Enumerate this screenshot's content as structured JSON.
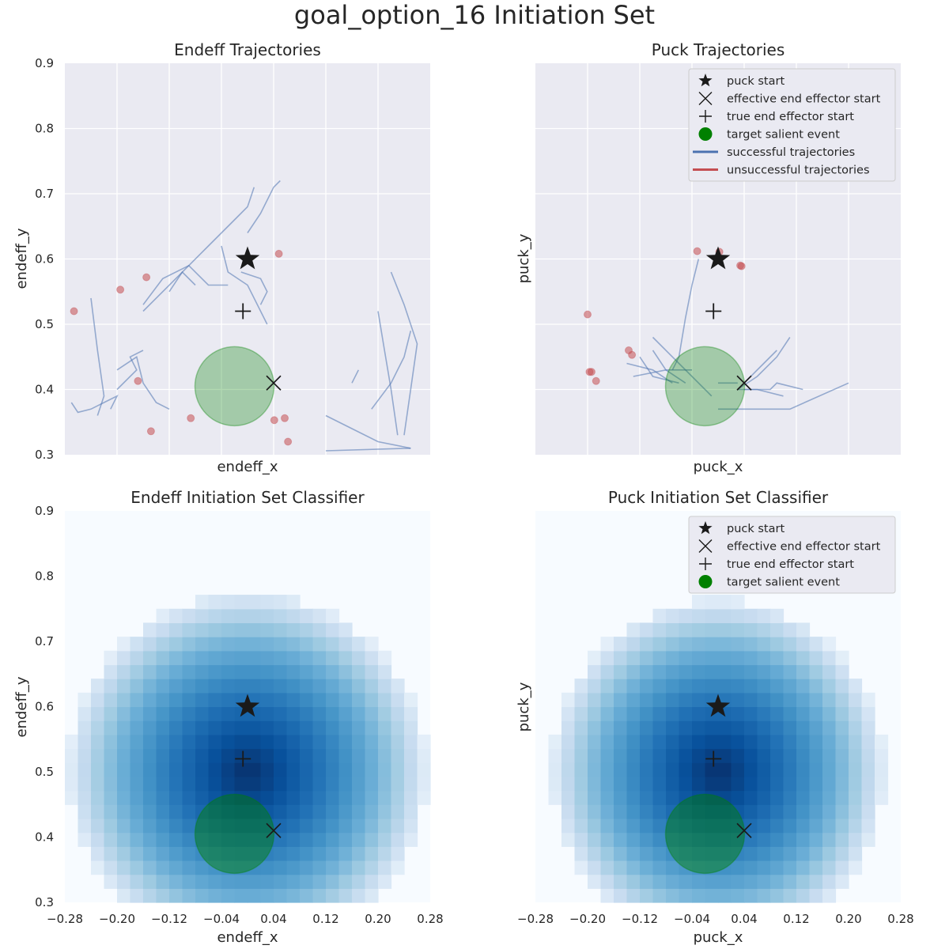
{
  "figure_title": "goal_option_16 Initiation Set",
  "colors": {
    "axes_bg": "#eaeaf2",
    "grid": "#ffffff",
    "success": "#4c72b0",
    "failure": "#c44e52",
    "target": "#008000",
    "marker": "#1a1a1a",
    "legend_bg": "#eaeaf2",
    "legend_border": "#cccccc"
  },
  "legend": {
    "puck_start": "puck start",
    "eff_start": "effective end effector start",
    "true_start": "true end effector start",
    "target": "target salient event",
    "success": "successful trajectories",
    "failure": "unsuccessful trajectories"
  },
  "markers": {
    "puck_start": [
      0.0,
      0.6
    ],
    "effective_end_effector_start": [
      0.04,
      0.41
    ],
    "true_end_effector_start": [
      -0.007,
      0.52
    ],
    "target_salient_event": [
      -0.02,
      0.405
    ]
  },
  "chart_data": [
    {
      "type": "line",
      "title": "Endeff Trajectories",
      "xlabel": "endeff_x",
      "ylabel": "endeff_y",
      "xlim": [
        -0.28,
        0.28
      ],
      "ylim": [
        0.3,
        0.9
      ],
      "yticks": [
        "0.3",
        "0.4",
        "0.5",
        "0.6",
        "0.7",
        "0.8",
        "0.9"
      ],
      "x_gridlines": [
        -0.2,
        -0.12,
        -0.04,
        0.04,
        0.12,
        0.2
      ],
      "grid": true,
      "legend": "none",
      "successful_trajectories": [
        [
          [
            -0.21,
            0.37
          ],
          [
            -0.2,
            0.39
          ],
          [
            -0.22,
            0.38
          ],
          [
            -0.24,
            0.37
          ],
          [
            -0.26,
            0.365
          ],
          [
            -0.27,
            0.38
          ]
        ],
        [
          [
            -0.24,
            0.54
          ],
          [
            -0.23,
            0.46
          ],
          [
            -0.22,
            0.39
          ],
          [
            -0.23,
            0.36
          ]
        ],
        [
          [
            -0.2,
            0.4
          ],
          [
            -0.17,
            0.43
          ],
          [
            -0.18,
            0.45
          ],
          [
            -0.16,
            0.46
          ]
        ],
        [
          [
            -0.2,
            0.43
          ],
          [
            -0.17,
            0.45
          ],
          [
            -0.16,
            0.41
          ],
          [
            -0.14,
            0.38
          ],
          [
            -0.12,
            0.37
          ]
        ],
        [
          [
            -0.16,
            0.53
          ],
          [
            -0.13,
            0.57
          ],
          [
            -0.09,
            0.59
          ],
          [
            -0.06,
            0.56
          ],
          [
            -0.03,
            0.56
          ]
        ],
        [
          [
            -0.12,
            0.55
          ],
          [
            -0.1,
            0.58
          ],
          [
            -0.08,
            0.56
          ]
        ],
        [
          [
            -0.16,
            0.52
          ],
          [
            -0.11,
            0.57
          ],
          [
            -0.06,
            0.62
          ],
          [
            -0.02,
            0.66
          ],
          [
            0.0,
            0.68
          ],
          [
            0.01,
            0.71
          ]
        ],
        [
          [
            -0.04,
            0.62
          ],
          [
            -0.03,
            0.58
          ],
          [
            0.0,
            0.56
          ],
          [
            0.03,
            0.5
          ]
        ],
        [
          [
            -0.01,
            0.58
          ],
          [
            0.02,
            0.57
          ],
          [
            0.03,
            0.55
          ],
          [
            0.02,
            0.53
          ]
        ],
        [
          [
            0.0,
            0.64
          ],
          [
            0.02,
            0.67
          ],
          [
            0.04,
            0.71
          ],
          [
            0.05,
            0.72
          ]
        ],
        [
          [
            0.12,
            0.36
          ],
          [
            0.16,
            0.34
          ],
          [
            0.2,
            0.32
          ],
          [
            0.25,
            0.31
          ]
        ],
        [
          [
            0.19,
            0.37
          ],
          [
            0.22,
            0.41
          ],
          [
            0.24,
            0.45
          ],
          [
            0.25,
            0.49
          ]
        ],
        [
          [
            0.16,
            0.41
          ],
          [
            0.17,
            0.43
          ]
        ],
        [
          [
            0.2,
            0.52
          ],
          [
            0.21,
            0.46
          ],
          [
            0.22,
            0.4
          ],
          [
            0.23,
            0.33
          ]
        ],
        [
          [
            0.22,
            0.58
          ],
          [
            0.24,
            0.53
          ],
          [
            0.26,
            0.47
          ],
          [
            0.25,
            0.4
          ],
          [
            0.24,
            0.33
          ]
        ],
        [
          [
            0.12,
            0.306
          ],
          [
            0.25,
            0.31
          ]
        ]
      ],
      "failed_endpoints": [
        [
          -0.266,
          0.52
        ],
        [
          -0.195,
          0.553
        ],
        [
          -0.155,
          0.572
        ],
        [
          -0.168,
          0.413
        ],
        [
          -0.148,
          0.336
        ],
        [
          -0.087,
          0.356
        ],
        [
          0.048,
          0.608
        ],
        [
          0.041,
          0.353
        ],
        [
          0.057,
          0.356
        ],
        [
          0.062,
          0.32
        ]
      ]
    },
    {
      "type": "line",
      "title": "Puck Trajectories",
      "xlabel": "puck_x",
      "ylabel": "puck_y",
      "xlim": [
        -0.28,
        0.28
      ],
      "ylim": [
        0.3,
        0.9
      ],
      "x_gridlines": [
        -0.2,
        -0.12,
        -0.04,
        0.04,
        0.12,
        0.2
      ],
      "grid": true,
      "legend": "top-right",
      "successful_trajectories": [
        [
          [
            -0.03,
            0.6
          ],
          [
            -0.04,
            0.56
          ],
          [
            -0.05,
            0.51
          ],
          [
            -0.06,
            0.45
          ],
          [
            -0.07,
            0.43
          ]
        ],
        [
          [
            -0.1,
            0.48
          ],
          [
            -0.07,
            0.45
          ],
          [
            -0.05,
            0.43
          ],
          [
            -0.01,
            0.39
          ]
        ],
        [
          [
            -0.12,
            0.45
          ],
          [
            -0.1,
            0.42
          ],
          [
            -0.06,
            0.41
          ]
        ],
        [
          [
            -0.14,
            0.44
          ],
          [
            -0.1,
            0.43
          ],
          [
            -0.07,
            0.41
          ]
        ],
        [
          [
            -0.1,
            0.46
          ],
          [
            -0.08,
            0.43
          ],
          [
            -0.05,
            0.41
          ]
        ],
        [
          [
            -0.13,
            0.42
          ],
          [
            -0.08,
            0.43
          ],
          [
            -0.04,
            0.43
          ]
        ],
        [
          [
            0.03,
            0.4
          ],
          [
            0.06,
            0.42
          ],
          [
            0.09,
            0.45
          ],
          [
            0.11,
            0.48
          ]
        ],
        [
          [
            0.04,
            0.4
          ],
          [
            0.08,
            0.4
          ],
          [
            0.09,
            0.41
          ],
          [
            0.13,
            0.4
          ]
        ],
        [
          [
            0.03,
            0.4
          ],
          [
            0.06,
            0.4
          ],
          [
            0.1,
            0.39
          ]
        ],
        [
          [
            0.0,
            0.37
          ],
          [
            0.05,
            0.37
          ],
          [
            0.11,
            0.37
          ],
          [
            0.2,
            0.41
          ]
        ],
        [
          [
            0.04,
            0.41
          ],
          [
            0.07,
            0.44
          ],
          [
            0.09,
            0.46
          ]
        ],
        [
          [
            0.0,
            0.41
          ],
          [
            0.03,
            0.41
          ]
        ]
      ],
      "failed_endpoints": [
        [
          -0.2,
          0.515
        ],
        [
          -0.197,
          0.427
        ],
        [
          -0.194,
          0.427
        ],
        [
          -0.187,
          0.413
        ],
        [
          -0.137,
          0.46
        ],
        [
          -0.132,
          0.453
        ],
        [
          -0.032,
          0.612
        ],
        [
          0.002,
          0.611
        ],
        [
          0.034,
          0.59
        ],
        [
          0.036,
          0.589
        ]
      ]
    },
    {
      "type": "heatmap",
      "title": "Endeff Initiation Set Classifier",
      "xlabel": "endeff_x",
      "ylabel": "endeff_y",
      "xlim": [
        -0.28,
        0.28
      ],
      "ylim": [
        0.3,
        0.9
      ],
      "xticks": [
        "−0.28",
        "−0.20",
        "−0.12",
        "−0.04",
        "0.04",
        "0.12",
        "0.20",
        "0.28"
      ],
      "yticks": [
        "0.3",
        "0.4",
        "0.5",
        "0.6",
        "0.7",
        "0.8",
        "0.9"
      ],
      "colormap": "Blues",
      "peak": [
        0.0,
        0.5
      ],
      "radius_x": 0.28,
      "radius_y": 0.28,
      "bins": 28,
      "legend": "none"
    },
    {
      "type": "heatmap",
      "title": "Puck Initiation Set Classifier",
      "xlabel": "puck_x",
      "ylabel": "puck_y",
      "xlim": [
        -0.28,
        0.28
      ],
      "ylim": [
        0.3,
        0.9
      ],
      "xticks": [
        "−0.28",
        "−0.20",
        "−0.12",
        "−0.04",
        "0.04",
        "0.12",
        "0.20",
        "0.28"
      ],
      "colormap": "Blues",
      "peak": [
        0.0,
        0.5
      ],
      "radius_x": 0.26,
      "radius_y": 0.27,
      "bins": 28,
      "legend": "top-right"
    }
  ]
}
